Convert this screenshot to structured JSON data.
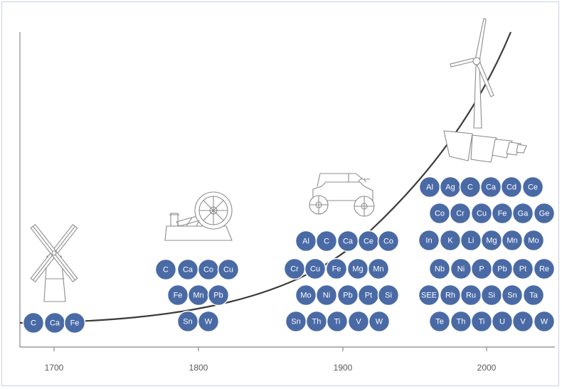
{
  "x_axis": {
    "ticks": [
      "1700",
      "1800",
      "1900",
      "2000"
    ]
  },
  "icons": [
    "windmill-icon",
    "steam-engine-icon",
    "automobile-icon",
    "wind-turbine-icon",
    "solar-panel-icon"
  ],
  "colors": {
    "bubble": "#4a6aa5",
    "curve": "#3a3a3a",
    "axis": "#8a8a8a"
  },
  "eras": [
    {
      "era": "1700",
      "rows": [
        [
          "C",
          "Ca",
          "Fe"
        ]
      ]
    },
    {
      "era": "1800",
      "rows": [
        [
          "C",
          "Ca",
          "Co",
          "Cu"
        ],
        [
          "Fe",
          "Mn",
          "Pb"
        ],
        [
          "Sn",
          "W"
        ]
      ]
    },
    {
      "era": "1900",
      "rows": [
        [
          "Al",
          "C",
          "Ca",
          "Ce",
          "Co"
        ],
        [
          "Cr",
          "Cu",
          "Fe",
          "Mg",
          "Mn"
        ],
        [
          "Mo",
          "Ni",
          "Pb",
          "Pt",
          "Si"
        ],
        [
          "Sn",
          "Th",
          "Ti",
          "V",
          "W"
        ]
      ]
    },
    {
      "era": "2000",
      "rows": [
        [
          "Al",
          "Ag",
          "C",
          "Ca",
          "Cd",
          "Ce"
        ],
        [
          "Co",
          "Cr",
          "Cu",
          "Fe",
          "Ga",
          "Ge"
        ],
        [
          "In",
          "K",
          "Li",
          "Mg",
          "Mn",
          "Mo"
        ],
        [
          "Nb",
          "Ni",
          "P",
          "Pb",
          "Pt",
          "Re"
        ],
        [
          "SEE",
          "Rh",
          "Ru",
          "Si",
          "Sn",
          "Ta"
        ],
        [
          "Te",
          "Th",
          "Ti",
          "U",
          "V",
          "W"
        ]
      ]
    }
  ]
}
